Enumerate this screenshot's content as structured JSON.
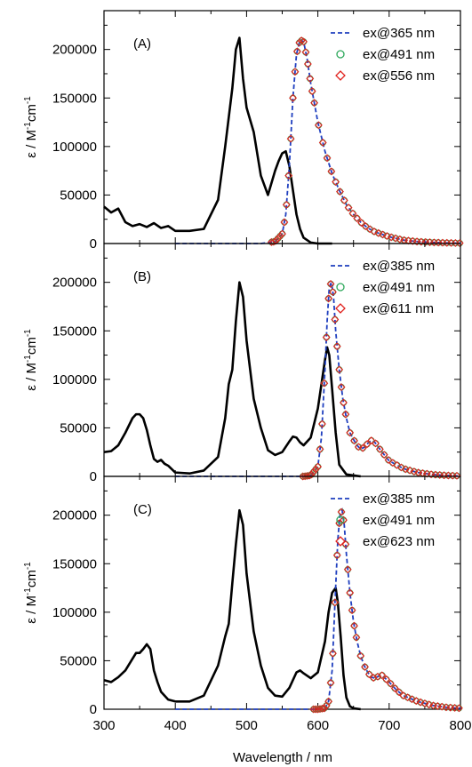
{
  "chart_data": {
    "type": "line",
    "xlabel": "Wavelength  /   nm",
    "x_ticks": [
      "300",
      "400",
      "500",
      "600",
      "700",
      "800"
    ],
    "xlim": [
      300,
      800
    ],
    "ylim": [
      0,
      240000
    ],
    "y_ticks": [
      "0",
      "50000",
      "100000",
      "150000",
      "200000"
    ],
    "ylabel_main": "ε  /  M",
    "ylabel_sup1": "-1",
    "ylabel_mid": "cm",
    "ylabel_sup2": "-1",
    "colors": {
      "absorption": "#000000",
      "uv": "#1f3fbf",
      "circle": "#2ca85a",
      "diamond": "#e0201c"
    },
    "panels": [
      {
        "label": "(A)",
        "legend": [
          "ex@365 nm",
          "ex@491 nm",
          "ex@556 nm"
        ],
        "absorption": {
          "x": [
            300,
            310,
            320,
            330,
            340,
            350,
            360,
            370,
            380,
            390,
            400,
            420,
            440,
            460,
            470,
            475,
            480,
            485,
            490,
            495,
            500,
            510,
            520,
            530,
            540,
            545,
            550,
            555,
            560,
            565,
            570,
            575,
            580,
            590,
            600,
            620
          ],
          "y": [
            38000,
            32000,
            36000,
            22000,
            18000,
            20000,
            17000,
            21000,
            16000,
            18000,
            13000,
            13000,
            15000,
            45000,
            100000,
            130000,
            160000,
            200000,
            212000,
            170000,
            140000,
            115000,
            70000,
            50000,
            75000,
            85000,
            93000,
            95000,
            80000,
            55000,
            30000,
            15000,
            6000,
            1000,
            0,
            0
          ]
        },
        "emission": {
          "x": [
            400,
            430,
            460,
            490,
            520,
            540,
            550,
            555,
            560,
            565,
            570,
            575,
            580,
            585,
            590,
            595,
            600,
            610,
            620,
            630,
            640,
            650,
            660,
            670,
            680,
            700,
            720,
            740,
            760,
            780,
            800
          ],
          "y": [
            0,
            0,
            0,
            0,
            0,
            2000,
            10000,
            30000,
            80000,
            150000,
            195000,
            210000,
            208000,
            190000,
            165000,
            145000,
            125000,
            95000,
            72000,
            55000,
            40000,
            30000,
            22000,
            16000,
            12000,
            7000,
            3500,
            2000,
            1200,
            700,
            400
          ]
        }
      },
      {
        "label": "(B)",
        "legend": [
          "ex@385 nm",
          "ex@491 nm",
          "ex@611 nm"
        ],
        "absorption": {
          "x": [
            300,
            310,
            320,
            330,
            340,
            345,
            350,
            355,
            360,
            365,
            370,
            375,
            380,
            385,
            390,
            400,
            420,
            440,
            460,
            470,
            475,
            480,
            485,
            490,
            495,
            500,
            510,
            520,
            530,
            540,
            550,
            560,
            565,
            570,
            575,
            580,
            590,
            600,
            605,
            610,
            613,
            616,
            620,
            625,
            630,
            640,
            660
          ],
          "y": [
            25000,
            26000,
            32000,
            45000,
            60000,
            64000,
            64000,
            60000,
            48000,
            32000,
            18000,
            15000,
            17000,
            13000,
            11000,
            4000,
            3000,
            6000,
            20000,
            60000,
            95000,
            110000,
            160000,
            200000,
            185000,
            140000,
            80000,
            50000,
            27000,
            22000,
            25000,
            36000,
            41000,
            40000,
            35000,
            32000,
            40000,
            70000,
            95000,
            120000,
            133000,
            125000,
            90000,
            45000,
            12000,
            2000,
            0
          ]
        },
        "emission": {
          "x": [
            400,
            450,
            500,
            550,
            580,
            590,
            600,
            605,
            610,
            613,
            616,
            619,
            622,
            625,
            630,
            635,
            640,
            645,
            650,
            655,
            660,
            665,
            670,
            675,
            680,
            690,
            700,
            720,
            740,
            760,
            780,
            800
          ],
          "y": [
            0,
            0,
            0,
            0,
            0,
            1000,
            10000,
            40000,
            110000,
            160000,
            195000,
            200000,
            185000,
            150000,
            110000,
            80000,
            60000,
            45000,
            38000,
            32000,
            28000,
            30000,
            34000,
            37000,
            35000,
            25000,
            16000,
            8000,
            4000,
            2000,
            1000,
            500
          ]
        }
      },
      {
        "label": "(C)",
        "legend": [
          "ex@385 nm",
          "ex@491 nm",
          "ex@623 nm"
        ],
        "absorption": {
          "x": [
            300,
            310,
            320,
            330,
            340,
            345,
            350,
            355,
            360,
            365,
            370,
            375,
            380,
            390,
            400,
            420,
            440,
            460,
            470,
            475,
            480,
            485,
            490,
            495,
            500,
            510,
            520,
            530,
            540,
            550,
            560,
            570,
            575,
            580,
            590,
            600,
            610,
            615,
            620,
            625,
            628,
            632,
            636,
            640,
            645,
            650,
            660
          ],
          "y": [
            30000,
            28000,
            33000,
            40000,
            52000,
            58000,
            58000,
            62000,
            67000,
            62000,
            40000,
            28000,
            18000,
            10000,
            8000,
            8000,
            14000,
            45000,
            75000,
            88000,
            130000,
            170000,
            205000,
            190000,
            140000,
            80000,
            45000,
            22000,
            14000,
            13000,
            22000,
            38000,
            40000,
            37000,
            32000,
            38000,
            70000,
            100000,
            120000,
            125000,
            110000,
            75000,
            35000,
            12000,
            3000,
            1000,
            0
          ]
        },
        "emission": {
          "x": [
            400,
            450,
            500,
            550,
            600,
            610,
            615,
            620,
            624,
            628,
            631,
            634,
            637,
            640,
            645,
            650,
            655,
            660,
            665,
            670,
            675,
            680,
            685,
            690,
            700,
            710,
            720,
            740,
            760,
            780,
            800
          ],
          "y": [
            0,
            0,
            0,
            0,
            0,
            1000,
            8000,
            40000,
            110000,
            175000,
            200000,
            205000,
            190000,
            160000,
            120000,
            90000,
            70000,
            55000,
            45000,
            38000,
            33000,
            32000,
            34000,
            35000,
            28000,
            20000,
            14000,
            8000,
            4000,
            2000,
            1000
          ]
        }
      }
    ]
  }
}
